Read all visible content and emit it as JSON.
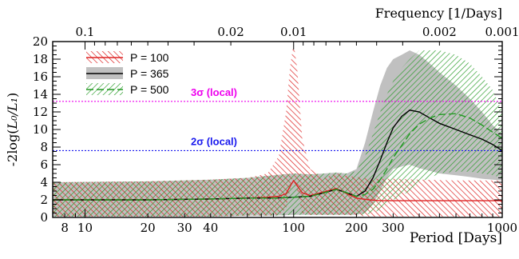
{
  "chart_data": {
    "type": "area",
    "x_scale": "log",
    "xlim": [
      7,
      1000
    ],
    "ylim": [
      0,
      20
    ],
    "xlabel": "Period [Days]",
    "ylabel_prefix": "-2log(",
    "ylabel_math": "L₀/L₁",
    "ylabel_suffix": ")",
    "top_axis_label": "Frequency [1/Days]",
    "x_tick_labels": [
      "8",
      "10",
      "20",
      "30",
      "40",
      "100",
      "200",
      "300",
      "1000"
    ],
    "x_tick_values": [
      8,
      10,
      20,
      30,
      40,
      100,
      200,
      300,
      1000
    ],
    "y_tick_labels": [
      "0",
      "2",
      "4",
      "6",
      "8",
      "10",
      "12",
      "14",
      "16",
      "18",
      "20"
    ],
    "y_tick_values": [
      0,
      2,
      4,
      6,
      8,
      10,
      12,
      14,
      16,
      18,
      20
    ],
    "top_tick_labels": [
      "0.1",
      "0.02",
      "0.01",
      "0.002",
      "0.001"
    ],
    "top_tick_values": [
      0.1,
      0.02,
      0.01,
      0.002,
      0.001
    ],
    "legend": {
      "position": "top-left",
      "entries": [
        "P = 100",
        "P = 365",
        "P = 500"
      ]
    },
    "reference_lines": [
      {
        "label": "3σ (local)",
        "y": 13.2,
        "color": "#ee00ee"
      },
      {
        "label": "2σ (local)",
        "y": 7.6,
        "color": "#1a1aee"
      }
    ],
    "series": [
      {
        "name": "P = 100",
        "color": "#dd2222",
        "x": [
          7,
          20,
          40,
          60,
          75,
          85,
          92,
          96,
          100,
          104,
          110,
          120,
          140,
          160,
          180,
          200,
          230,
          260,
          300,
          400,
          600,
          1000
        ],
        "mean": [
          2.0,
          2.0,
          2.1,
          2.2,
          2.3,
          2.4,
          2.7,
          3.5,
          4.2,
          3.6,
          2.8,
          2.5,
          2.9,
          3.3,
          2.7,
          2.2,
          2.0,
          1.9,
          1.9,
          1.9,
          1.9,
          1.9
        ],
        "lower": [
          0.1,
          0.1,
          0.1,
          0.2,
          0.2,
          0.3,
          1.0,
          3.0,
          5.0,
          3.0,
          0.5,
          0.3,
          0.3,
          0.3,
          0.3,
          0.2,
          0.1,
          0.1,
          0.1,
          0.1,
          0.1,
          0.1
        ],
        "upper": [
          4.0,
          4.1,
          4.3,
          4.5,
          5.0,
          7.0,
          12.0,
          17.0,
          19.8,
          17.0,
          9.0,
          5.5,
          4.5,
          5.0,
          4.7,
          4.6,
          4.4,
          4.4,
          4.4,
          4.3,
          4.2,
          4.2
        ]
      },
      {
        "name": "P = 365",
        "color": "#000000",
        "x": [
          7,
          20,
          40,
          60,
          80,
          100,
          120,
          140,
          160,
          180,
          200,
          220,
          240,
          260,
          280,
          300,
          330,
          360,
          400,
          450,
          500,
          600,
          700,
          800,
          900,
          1000
        ],
        "mean": [
          2.0,
          2.0,
          2.1,
          2.2,
          2.2,
          2.3,
          2.4,
          2.8,
          3.2,
          2.8,
          2.4,
          3.0,
          4.5,
          6.5,
          8.5,
          10.2,
          11.5,
          12.2,
          12.0,
          11.3,
          10.7,
          10.0,
          9.4,
          8.9,
          8.3,
          7.6
        ],
        "lower": [
          0.1,
          0.1,
          0.1,
          0.2,
          0.2,
          0.3,
          0.3,
          0.3,
          0.3,
          0.3,
          0.3,
          0.5,
          1.5,
          3.0,
          4.5,
          5.5,
          5.8,
          6.0,
          5.6,
          5.3,
          5.0,
          4.8,
          4.6,
          4.4,
          4.3,
          4.2
        ],
        "upper": [
          4.0,
          4.1,
          4.3,
          4.5,
          4.8,
          5.0,
          4.9,
          5.0,
          5.1,
          5.0,
          5.5,
          8.5,
          12.0,
          15.0,
          17.0,
          18.0,
          18.5,
          19.0,
          18.5,
          17.5,
          16.5,
          15.0,
          13.5,
          12.0,
          10.5,
          9.5
        ]
      },
      {
        "name": "P = 500",
        "color": "#229922",
        "x": [
          7,
          20,
          40,
          60,
          80,
          100,
          120,
          140,
          160,
          180,
          200,
          220,
          240,
          260,
          280,
          300,
          330,
          360,
          400,
          450,
          500,
          600,
          700,
          800,
          900,
          1000
        ],
        "mean": [
          2.0,
          2.0,
          2.1,
          2.2,
          2.2,
          2.3,
          2.4,
          2.8,
          3.2,
          2.8,
          2.4,
          2.6,
          3.2,
          4.3,
          5.5,
          6.8,
          8.2,
          9.5,
          10.6,
          11.3,
          11.7,
          11.8,
          11.3,
          10.5,
          9.7,
          9.0
        ],
        "lower": [
          0.1,
          0.1,
          0.1,
          0.2,
          0.2,
          0.3,
          0.3,
          0.3,
          0.3,
          0.3,
          0.3,
          0.3,
          0.5,
          0.9,
          1.5,
          2.0,
          2.5,
          3.0,
          4.0,
          4.5,
          5.0,
          5.2,
          5.2,
          5.0,
          4.8,
          4.5
        ],
        "upper": [
          4.0,
          4.1,
          4.3,
          4.5,
          4.8,
          5.0,
          4.9,
          5.0,
          5.1,
          5.0,
          5.3,
          7.0,
          9.5,
          12.0,
          14.0,
          15.5,
          17.0,
          18.0,
          19.0,
          19.0,
          19.0,
          18.5,
          17.5,
          16.0,
          14.5,
          12.0
        ]
      }
    ]
  }
}
